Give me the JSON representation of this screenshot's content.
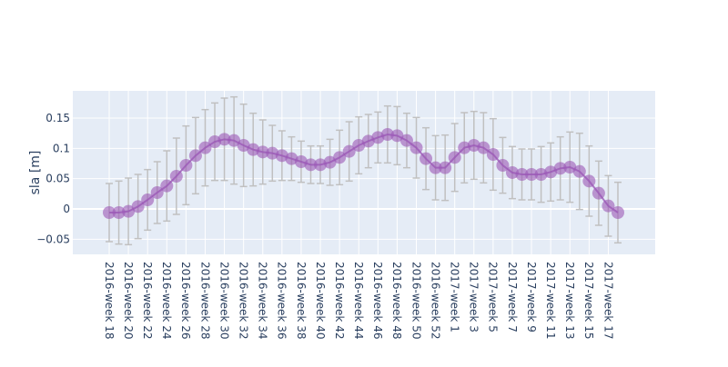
{
  "chart_data": {
    "type": "scatter",
    "mode": "lines+markers",
    "title": "",
    "xlabel": "",
    "ylabel": "sla [m]",
    "ylim": [
      -0.075,
      0.195
    ],
    "yticks": [
      -0.05,
      0,
      0.05,
      0.1,
      0.15
    ],
    "ytick_labels": [
      "−0.05",
      "0",
      "0.05",
      "0.1",
      "0.15"
    ],
    "grid": true,
    "legend": "none",
    "colors": {
      "plot_bg": "#e5ecf6",
      "grid": "#ffffff",
      "line": "#9b59b6",
      "marker": "#9b59b6",
      "error_bar": "#c0c0c0",
      "text": "#2a3f5f"
    },
    "x": [
      "2016-week 18",
      "2016-week 19",
      "2016-week 20",
      "2016-week 21",
      "2016-week 22",
      "2016-week 23",
      "2016-week 24",
      "2016-week 25",
      "2016-week 26",
      "2016-week 27",
      "2016-week 28",
      "2016-week 29",
      "2016-week 30",
      "2016-week 31",
      "2016-week 32",
      "2016-week 33",
      "2016-week 34",
      "2016-week 35",
      "2016-week 36",
      "2016-week 37",
      "2016-week 38",
      "2016-week 39",
      "2016-week 40",
      "2016-week 41",
      "2016-week 42",
      "2016-week 43",
      "2016-week 44",
      "2016-week 45",
      "2016-week 46",
      "2016-week 47",
      "2016-week 48",
      "2016-week 49",
      "2016-week 50",
      "2016-week 51",
      "2016-week 52",
      "2016-week 53",
      "2017-week 1",
      "2017-week 2",
      "2017-week 3",
      "2017-week 4",
      "2017-week 5",
      "2017-week 6",
      "2017-week 7",
      "2017-week 8",
      "2017-week 9",
      "2017-week 10",
      "2017-week 11",
      "2017-week 12",
      "2017-week 13",
      "2017-week 14",
      "2017-week 15",
      "2017-week 16",
      "2017-week 17",
      "2017-week 18"
    ],
    "x_tick_labels": [
      "2016-week 18",
      "2016-week 20",
      "2016-week 22",
      "2016-week 24",
      "2016-week 26",
      "2016-week 28",
      "2016-week 30",
      "2016-week 32",
      "2016-week 34",
      "2016-week 36",
      "2016-week 38",
      "2016-week 40",
      "2016-week 42",
      "2016-week 44",
      "2016-week 46",
      "2016-week 48",
      "2016-week 50",
      "2016-week 52",
      "2017-week 1",
      "2017-week 3",
      "2017-week 5",
      "2017-week 7",
      "2017-week 9",
      "2017-week 11",
      "2017-week 13",
      "2017-week 15",
      "2017-week 17"
    ],
    "y": [
      -0.006,
      -0.006,
      -0.004,
      0.004,
      0.015,
      0.027,
      0.038,
      0.054,
      0.072,
      0.088,
      0.101,
      0.111,
      0.115,
      0.113,
      0.105,
      0.098,
      0.094,
      0.092,
      0.088,
      0.083,
      0.078,
      0.073,
      0.073,
      0.077,
      0.085,
      0.095,
      0.105,
      0.112,
      0.118,
      0.123,
      0.121,
      0.113,
      0.101,
      0.083,
      0.068,
      0.068,
      0.085,
      0.101,
      0.105,
      0.101,
      0.09,
      0.072,
      0.06,
      0.057,
      0.057,
      0.057,
      0.061,
      0.067,
      0.069,
      0.062,
      0.046,
      0.026,
      0.005,
      -0.006
    ],
    "error": [
      0.048,
      0.052,
      0.055,
      0.053,
      0.05,
      0.051,
      0.058,
      0.063,
      0.065,
      0.063,
      0.063,
      0.064,
      0.068,
      0.072,
      0.068,
      0.06,
      0.053,
      0.046,
      0.041,
      0.036,
      0.034,
      0.031,
      0.031,
      0.038,
      0.045,
      0.049,
      0.047,
      0.044,
      0.042,
      0.047,
      0.048,
      0.045,
      0.05,
      0.051,
      0.053,
      0.054,
      0.056,
      0.058,
      0.056,
      0.058,
      0.059,
      0.046,
      0.043,
      0.042,
      0.042,
      0.046,
      0.048,
      0.052,
      0.058,
      0.063,
      0.058,
      0.053,
      0.05,
      0.05
    ]
  }
}
